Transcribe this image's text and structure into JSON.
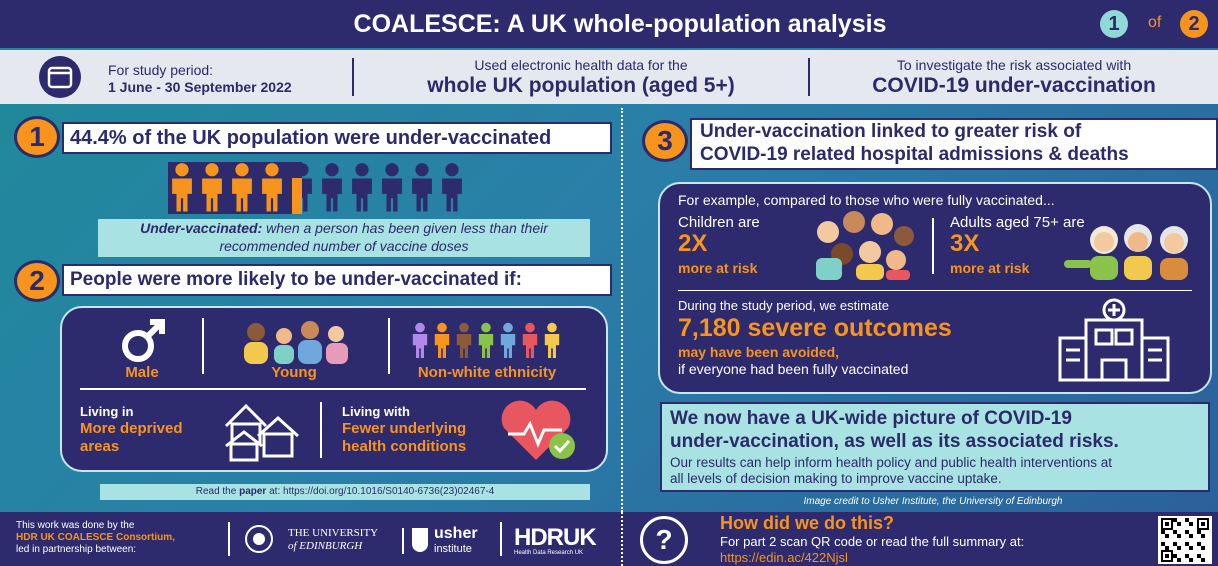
{
  "header": {
    "title": "COALESCE: A UK whole-population analysis",
    "page_current": "1",
    "page_of": "of",
    "page_total": "2"
  },
  "subheader": {
    "items": [
      {
        "label": "For study period:",
        "value": "1 June - 30 September 2022"
      },
      {
        "label": "Used electronic health data for the",
        "value": "whole UK population (aged 5+)"
      },
      {
        "label": "To investigate the risk associated with",
        "value": "COVID-19 under-vaccination"
      }
    ]
  },
  "section1": {
    "number": "1",
    "title": "44.4% of the UK population were under-vaccinated",
    "definition_term": "Under-vaccinated:",
    "definition_line1": "when a person has been given less than their",
    "definition_line2": "recommended number of vaccine doses"
  },
  "section2": {
    "number": "2",
    "title": "People were more likely to be under-vaccinated if:",
    "factors": [
      "Male",
      "Young",
      "Non-white ethnicity"
    ],
    "living": [
      {
        "prefix": "Living in",
        "line1": "More deprived",
        "line2": "areas"
      },
      {
        "prefix": "Living with",
        "line1": "Fewer underlying",
        "line2": "health conditions"
      }
    ],
    "read_prefix": "Read the",
    "read_strong": "paper",
    "read_rest": "at: https://doi.org/10.1016/S0140-6736(23)02467-4"
  },
  "section3": {
    "number": "3",
    "title_line1": "Under-vaccination linked to greater risk of",
    "title_line2": "COVID-19 related hospital admissions & deaths",
    "intro": "For example, compared to those who were fully vaccinated...",
    "groups": [
      {
        "label": "Children are",
        "ratio": "2X",
        "risk": "more at risk"
      },
      {
        "label": "Adults aged 75+ are",
        "ratio": "3X",
        "risk": "more at risk"
      }
    ],
    "estimate_intro": "During the study period, we estimate",
    "estimate": "7,180 severe outcomes",
    "estimate_line2": "may have been avoided,",
    "estimate_line3": "if everyone had been fully vaccinated"
  },
  "conclusion": {
    "title_line1": "We now have a UK-wide picture of COVID-19",
    "title_line2": "under-vaccination, as well as its associated risks.",
    "body_line1": "Our results can help inform health policy and public health interventions at",
    "body_line2": "all levels of decision making to improve vaccine uptake."
  },
  "credit": "Image credit to Usher Institute, the University of Edinburgh",
  "footer": {
    "line1": "This work was done by the",
    "line2": "HDR UK COALESCE Consortium,",
    "line3": "led in partnership between:",
    "edinburgh_line1": "THE UNIVERSITY",
    "edinburgh_line2": "of EDINBURGH",
    "usher_line1": "usher",
    "usher_line2": "institute",
    "hdruk": "HDRUK",
    "hdruk_sub": "Health Data Research UK",
    "question": "?",
    "how_title": "How did we do this?",
    "how_body": "For part 2 scan QR code or read the full summary at:",
    "how_link": "https://edin.ac/422Njsl"
  }
}
